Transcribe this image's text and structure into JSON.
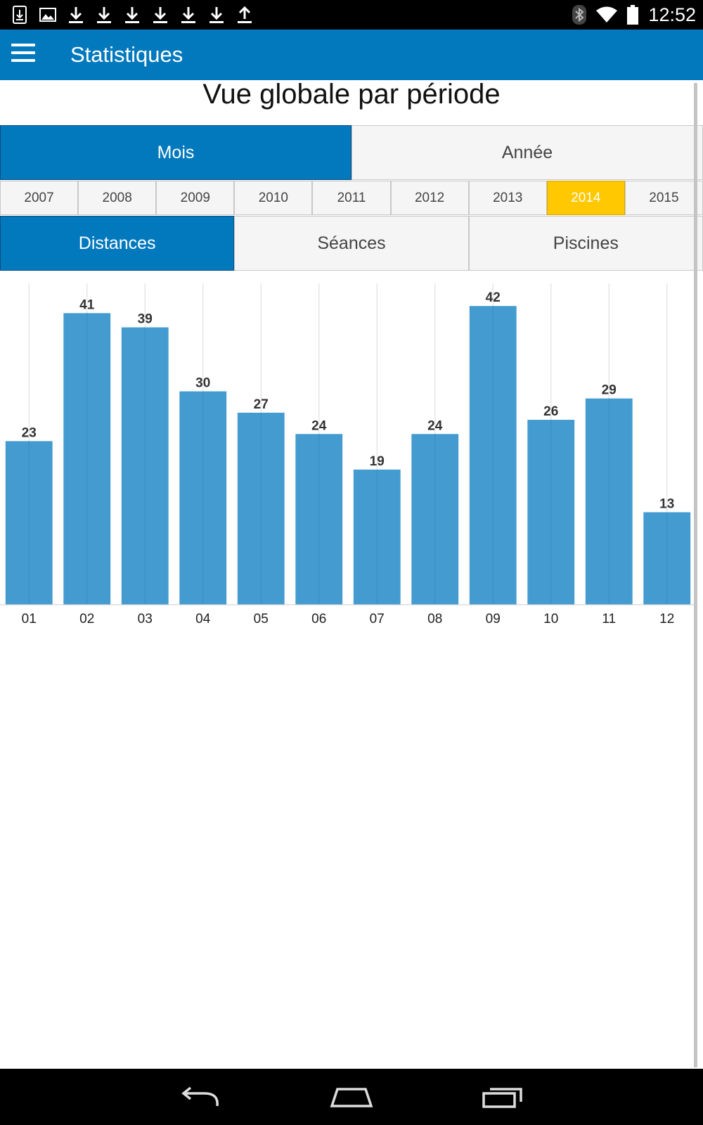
{
  "status_bar": {
    "time": "12:52",
    "left_icons": [
      "download-box-icon",
      "image-icon",
      "download-icon",
      "download-icon",
      "download-icon",
      "download-icon",
      "download-icon",
      "download-icon",
      "upload-icon"
    ],
    "right_icons": [
      "bluetooth-icon",
      "wifi-icon",
      "battery-icon"
    ]
  },
  "app_bar": {
    "title": "Statistiques",
    "menu_icon": "hamburger-menu-icon",
    "color": "#0379bd"
  },
  "heading": "Vue globale par période",
  "period_tabs": [
    {
      "label": "Mois",
      "active": true
    },
    {
      "label": "Année",
      "active": false
    }
  ],
  "years": [
    {
      "label": "2007",
      "selected": false
    },
    {
      "label": "2008",
      "selected": false
    },
    {
      "label": "2009",
      "selected": false
    },
    {
      "label": "2010",
      "selected": false
    },
    {
      "label": "2011",
      "selected": false
    },
    {
      "label": "2012",
      "selected": false
    },
    {
      "label": "2013",
      "selected": false
    },
    {
      "label": "2014",
      "selected": true
    },
    {
      "label": "2015",
      "selected": false
    }
  ],
  "metric_tabs": [
    {
      "label": "Distances",
      "active": true
    },
    {
      "label": "Séances",
      "active": false
    },
    {
      "label": "Piscines",
      "active": false
    }
  ],
  "colors": {
    "accent": "#0379bd",
    "selected_year": "#ffc800",
    "bar": "#439bd0"
  },
  "chart_data": {
    "type": "bar",
    "categories": [
      "01",
      "02",
      "03",
      "04",
      "05",
      "06",
      "07",
      "08",
      "09",
      "10",
      "11",
      "12"
    ],
    "values": [
      23,
      41,
      39,
      30,
      27,
      24,
      19,
      24,
      42,
      26,
      29,
      13
    ],
    "title": "",
    "xlabel": "",
    "ylabel": "",
    "ylim": [
      0,
      44
    ],
    "grid": true,
    "data_labels": true
  },
  "nav_bar": {
    "icons": [
      "back-icon",
      "home-icon",
      "recent-apps-icon"
    ]
  }
}
